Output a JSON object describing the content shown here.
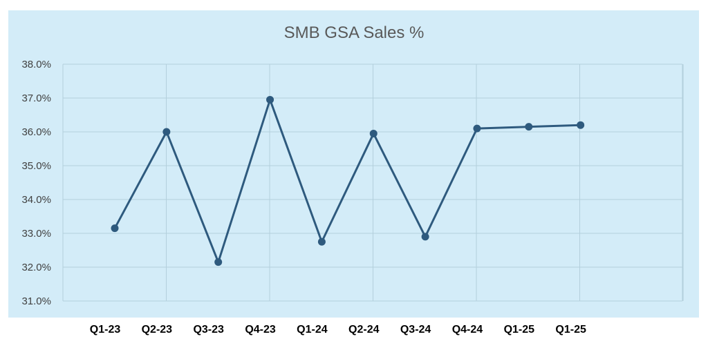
{
  "chart_data": {
    "type": "line",
    "title": "SMB GSA Sales %",
    "xlabel": "",
    "ylabel": "",
    "categories": [
      "Q1-23",
      "Q2-23",
      "Q3-23",
      "Q4-23",
      "Q1-24",
      "Q2-24",
      "Q3-24",
      "Q4-24",
      "Q1-25",
      "Q1-25"
    ],
    "y_tick_labels": [
      "38.0%",
      "37.0%",
      "36.0%",
      "35.0%",
      "34.0%",
      "33.0%",
      "32.0%",
      "31.0%"
    ],
    "ylim": [
      31.0,
      38.0
    ],
    "grid": true,
    "legend": "none",
    "series": [
      {
        "values": [
          33.15,
          36.0,
          32.15,
          36.95,
          32.75,
          35.95,
          32.9,
          36.1,
          36.15,
          36.2
        ]
      }
    ],
    "colors": {
      "line": "#2e5a7e",
      "plot_background": "#d3ecf8",
      "grid": "#b3cfdc"
    }
  }
}
